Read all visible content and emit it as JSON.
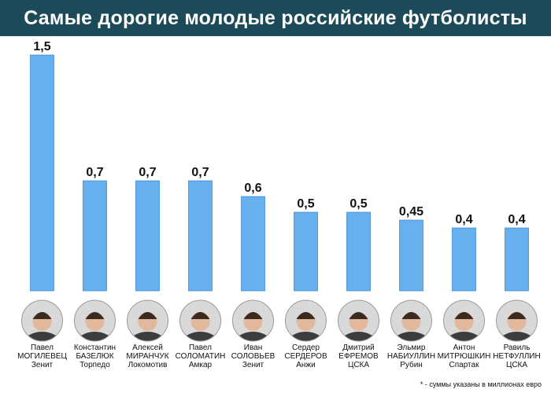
{
  "header": {
    "title": "Самые дорогие молодые российские футболисты"
  },
  "footnote": "* - суммы указаны в миллионах евро",
  "colors": {
    "bar": "#66b0ee",
    "bar_stroke": "#3f8fd8",
    "title_bg": "#1d4a58"
  },
  "chart_data": {
    "type": "bar",
    "title": "Самые дорогие молодые российские футболисты",
    "ylim": [
      0,
      1.5
    ],
    "grid": false,
    "categories": [
      {
        "first": "Павел",
        "last": "МОГИЛЕВЕЦ",
        "club": "Зенит"
      },
      {
        "first": "Константин",
        "last": "БАЗЕЛЮК",
        "club": "Торпедо"
      },
      {
        "first": "Алексей",
        "last": "МИРАНЧУК",
        "club": "Локомотив"
      },
      {
        "first": "Павел",
        "last": "СОЛОМАТИН",
        "club": "Амкар"
      },
      {
        "first": "Иван",
        "last": "СОЛОВЬЕВ",
        "club": "Зенит"
      },
      {
        "first": "Сердер",
        "last": "СЕРДЕРОВ",
        "club": "Анжи"
      },
      {
        "first": "Дмитрий",
        "last": "ЕФРЕМОВ",
        "club": "ЦСКА"
      },
      {
        "first": "Эльмир",
        "last": "НАБИУЛЛИН",
        "club": "Рубин"
      },
      {
        "first": "Антон",
        "last": "МИТРЮШКИН",
        "club": "Спартак"
      },
      {
        "first": "Равиль",
        "last": "НЕТФУЛЛИН",
        "club": "ЦСКА"
      }
    ],
    "values": [
      1.5,
      0.7,
      0.7,
      0.7,
      0.6,
      0.5,
      0.5,
      0.45,
      0.4,
      0.4
    ],
    "value_labels": [
      "1,5",
      "0,7",
      "0,7",
      "0,7",
      "0,6",
      "0,5",
      "0,5",
      "0,45",
      "0,4",
      "0,4"
    ]
  }
}
